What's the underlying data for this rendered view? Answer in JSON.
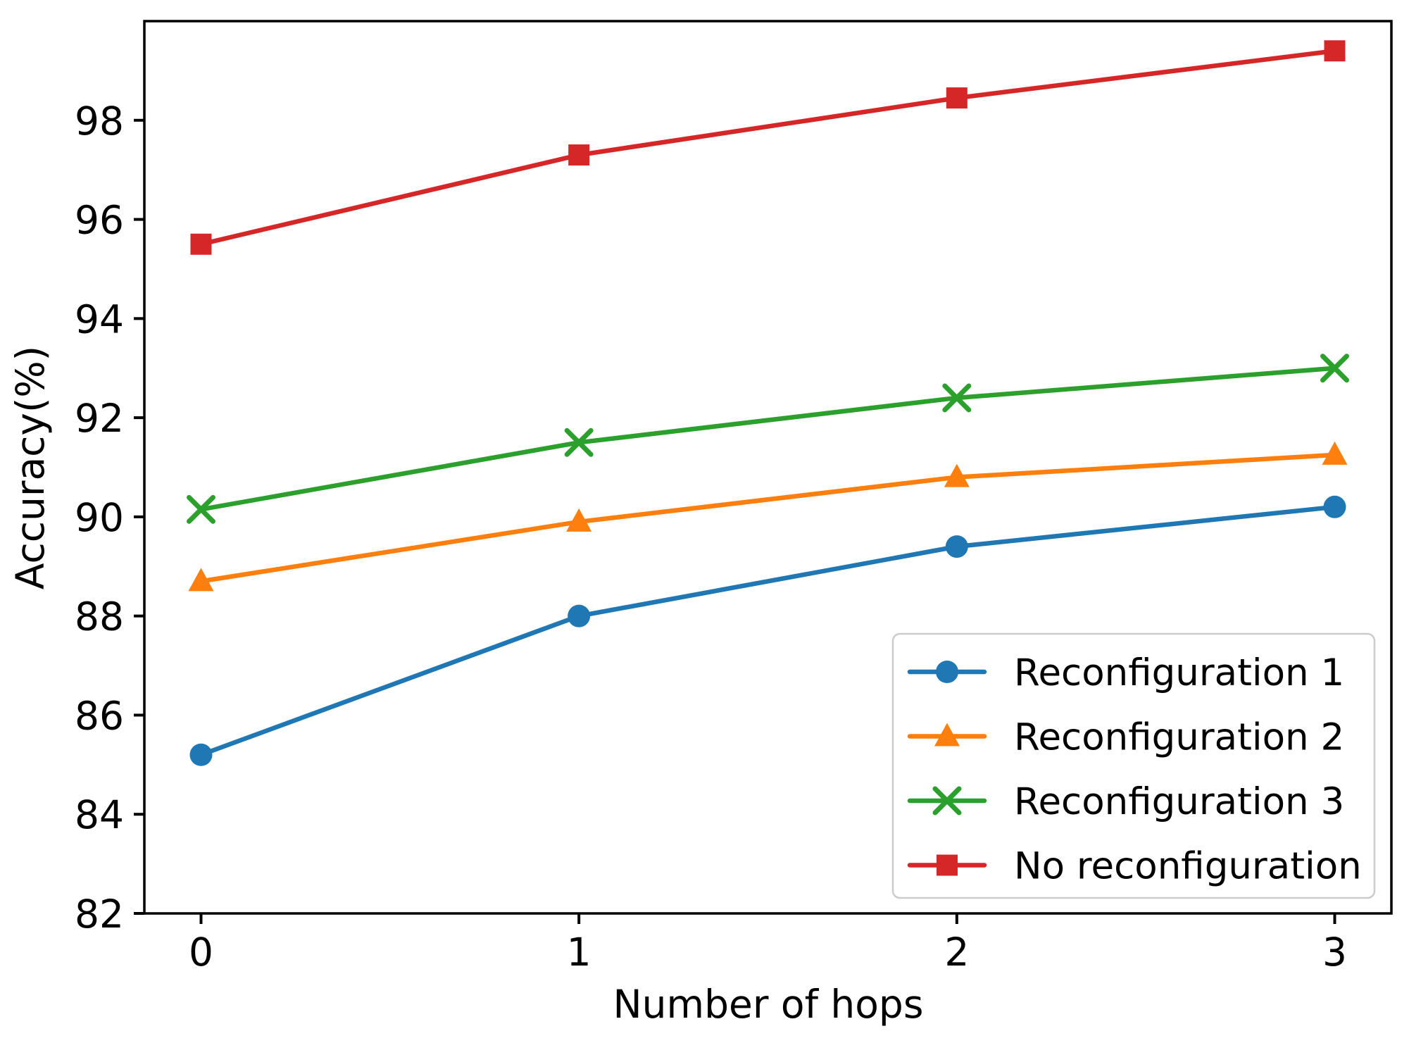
{
  "chart_data": {
    "type": "line",
    "title": "",
    "xlabel": "Number of hops",
    "ylabel": "Accuracy(%)",
    "x": [
      0,
      1,
      2,
      3
    ],
    "x_tick_labels": [
      "0",
      "1",
      "2",
      "3"
    ],
    "y_ticks": [
      82,
      84,
      86,
      88,
      90,
      92,
      94,
      96,
      98
    ],
    "xlim": [
      -0.15,
      3.15
    ],
    "ylim": [
      82,
      100
    ],
    "grid": false,
    "legend_position": "lower right",
    "legend_border_color": "#cccccc",
    "legend_background": "#ffffff",
    "axis_color": "#000000",
    "series": [
      {
        "name": "Reconfiguration 1",
        "color": "#1f77b4",
        "marker": "circle",
        "values": [
          85.2,
          88.0,
          89.4,
          90.2
        ]
      },
      {
        "name": "Reconfiguration 2",
        "color": "#ff7f0e",
        "marker": "triangle",
        "values": [
          88.7,
          89.9,
          90.8,
          91.25
        ]
      },
      {
        "name": "Reconfiguration 3",
        "color": "#2ca02c",
        "marker": "x",
        "values": [
          90.15,
          91.5,
          92.4,
          93.0
        ]
      },
      {
        "name": "No reconfiguration",
        "color": "#d62728",
        "marker": "square",
        "values": [
          95.5,
          97.3,
          98.45,
          99.4
        ]
      }
    ]
  }
}
